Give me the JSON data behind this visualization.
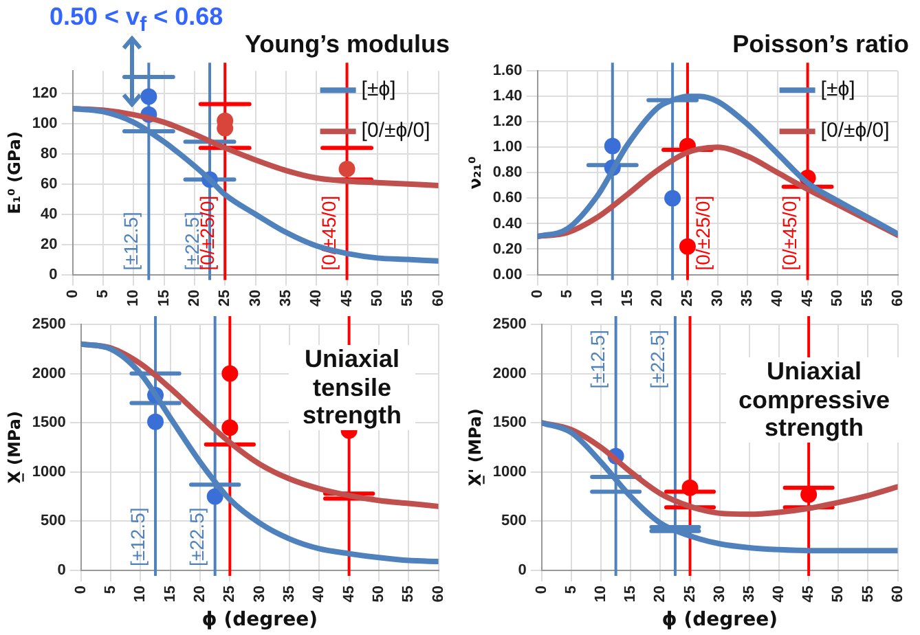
{
  "chart_data": [
    {
      "type": "line",
      "title": "Young’s modulus",
      "ylabel": "E₁⁰ (GPa)",
      "xlim": [
        0,
        60
      ],
      "xticks": [
        0,
        5,
        10,
        15,
        20,
        25,
        30,
        35,
        40,
        45,
        50,
        55,
        60
      ],
      "ylim": [
        0,
        135
      ],
      "yticks": [
        0,
        20,
        40,
        60,
        80,
        100,
        120
      ],
      "grid": true,
      "legend": "top right",
      "annotations": [
        "0.50 < v$_{f}$ < 0.68"
      ],
      "ref_lines": [
        {
          "axis": "x",
          "value": 12.5,
          "label": "[±12.5]",
          "color": "#4f81bd"
        },
        {
          "axis": "x",
          "value": 22.5,
          "label": "[±22.5]",
          "color": "#4f81bd"
        },
        {
          "axis": "x",
          "value": 25,
          "label": "[0/±25/0]",
          "color": "#ff0000"
        },
        {
          "axis": "x",
          "value": 45,
          "label": "[0/±45/0]",
          "color": "#ff0000"
        }
      ],
      "series": [
        {
          "name": "[±ϕ]",
          "type": "line",
          "marker": "none",
          "color": "#4f81bd",
          "x": [
            0,
            5,
            10,
            15,
            20,
            22.5,
            25,
            30,
            35,
            40,
            45,
            50,
            55,
            60
          ],
          "values": [
            110,
            108,
            101,
            88,
            72,
            63,
            53,
            40,
            28,
            19,
            14,
            11,
            10,
            9
          ]
        },
        {
          "name": "[0/±ϕ/0]",
          "type": "line",
          "marker": "none",
          "color": "#c0504d",
          "x": [
            0,
            5,
            10,
            15,
            20,
            25,
            30,
            35,
            40,
            45,
            50,
            55,
            60
          ],
          "values": [
            110,
            109,
            106,
            101,
            93,
            84,
            76,
            69,
            64,
            62,
            61,
            60,
            59
          ]
        },
        {
          "type": "scatter",
          "marker": "circle",
          "color": "#3a6fd8",
          "x": [
            12.5,
            12.5,
            22.5
          ],
          "values": [
            118,
            106,
            63
          ]
        },
        {
          "type": "scatter",
          "marker": "circle",
          "color": "#d9453a",
          "x": [
            25,
            25,
            45
          ],
          "values": [
            102,
            97,
            70
          ]
        },
        {
          "type": "line",
          "marker": "none",
          "color": "#4f81bd",
          "x": [
            8.5,
            16.5
          ],
          "values": [
            131,
            131
          ]
        },
        {
          "type": "line",
          "marker": "none",
          "color": "#4f81bd",
          "x": [
            8.5,
            16.5
          ],
          "values": [
            95,
            95
          ]
        },
        {
          "type": "line",
          "marker": "none",
          "color": "#4f81bd",
          "x": [
            18.5,
            26.5
          ],
          "values": [
            88,
            88
          ]
        },
        {
          "type": "line",
          "marker": "none",
          "color": "#4f81bd",
          "x": [
            18.5,
            26.5
          ],
          "values": [
            63,
            63
          ]
        },
        {
          "type": "line",
          "marker": "none",
          "color": "#ff0000",
          "x": [
            21,
            29
          ],
          "values": [
            113,
            113
          ]
        },
        {
          "type": "line",
          "marker": "none",
          "color": "#ff0000",
          "x": [
            21,
            29
          ],
          "values": [
            84,
            84
          ]
        },
        {
          "type": "line",
          "marker": "none",
          "color": "#ff0000",
          "x": [
            41,
            49
          ],
          "values": [
            84,
            84
          ]
        },
        {
          "type": "line",
          "marker": "none",
          "color": "#ff0000",
          "x": [
            41,
            49
          ],
          "values": [
            63,
            63
          ]
        }
      ]
    },
    {
      "type": "line",
      "title": "Poisson’s ratio",
      "ylabel": "ν₂₁⁰",
      "xlim": [
        0,
        60
      ],
      "xticks": [
        0,
        5,
        10,
        15,
        20,
        25,
        30,
        35,
        40,
        45,
        50,
        55,
        60
      ],
      "ylim": [
        0,
        1.6
      ],
      "yticks": [
        {
          "value": 0,
          "label": "0.00"
        },
        {
          "value": 0.2,
          "label": "0.20"
        },
        {
          "value": 0.4,
          "label": "0.40"
        },
        {
          "value": 0.6,
          "label": "0.60"
        },
        {
          "value": 0.8,
          "label": "0.80"
        },
        {
          "value": 1,
          "label": "1.00"
        },
        {
          "value": 1.2,
          "label": "1.20"
        },
        {
          "value": 1.4,
          "label": "1.40"
        },
        {
          "value": 1.6,
          "label": "1.60"
        }
      ],
      "grid": true,
      "legend": "top right",
      "ref_lines": [
        {
          "axis": "x",
          "value": 12.5,
          "color": "#4f81bd"
        },
        {
          "axis": "x",
          "value": 22.5,
          "color": "#4f81bd"
        },
        {
          "axis": "x",
          "value": 25,
          "label": "[0/±25/0]",
          "color": "#ff0000"
        },
        {
          "axis": "x",
          "value": 45,
          "label": "[0/±45/0]",
          "color": "#ff0000"
        }
      ],
      "series": [
        {
          "name": "[±ϕ]",
          "type": "line",
          "marker": "none",
          "color": "#4f81bd",
          "x": [
            0,
            5,
            10,
            15,
            20,
            22.5,
            25,
            27,
            30,
            35,
            40,
            45,
            50,
            55,
            60
          ],
          "values": [
            0.3,
            0.36,
            0.62,
            1.02,
            1.31,
            1.37,
            1.4,
            1.4,
            1.36,
            1.18,
            0.95,
            0.72,
            0.58,
            0.45,
            0.32
          ]
        },
        {
          "name": "[0/±ϕ/0]",
          "type": "line",
          "marker": "none",
          "color": "#c0504d",
          "x": [
            0,
            5,
            10,
            15,
            20,
            25,
            30,
            35,
            40,
            45,
            50,
            55,
            60
          ],
          "values": [
            0.3,
            0.33,
            0.45,
            0.63,
            0.82,
            0.96,
            1,
            0.93,
            0.8,
            0.67,
            0.55,
            0.43,
            0.31
          ]
        },
        {
          "type": "scatter",
          "marker": "circle",
          "color": "#3a6fd8",
          "x": [
            12.5,
            12.5,
            22.5
          ],
          "values": [
            1.01,
            0.84,
            0.6
          ]
        },
        {
          "type": "scatter",
          "marker": "circle",
          "color": "#ff0000",
          "x": [
            25,
            25,
            45
          ],
          "values": [
            1.01,
            0.22,
            0.76
          ]
        },
        {
          "type": "line",
          "marker": "none",
          "color": "#4f81bd",
          "x": [
            8.5,
            16.5
          ],
          "values": [
            0.86,
            0.86
          ]
        },
        {
          "type": "line",
          "marker": "none",
          "color": "#4f81bd",
          "x": [
            18.5,
            26.5
          ],
          "values": [
            1.37,
            1.37
          ]
        },
        {
          "type": "line",
          "marker": "none",
          "color": "#ff0000",
          "x": [
            21,
            29
          ],
          "values": [
            0.98,
            0.98
          ]
        },
        {
          "type": "line",
          "marker": "none",
          "color": "#ff0000",
          "x": [
            41,
            49
          ],
          "values": [
            0.69,
            0.69
          ]
        }
      ]
    },
    {
      "type": "line",
      "xlabel": "ϕ (degree)",
      "ylabel": "X̲ (MPa)",
      "xlim": [
        0,
        60
      ],
      "xticks": [
        0,
        5,
        10,
        15,
        20,
        25,
        30,
        35,
        40,
        45,
        50,
        55,
        60
      ],
      "ylim": [
        0,
        2500
      ],
      "yticks": [
        0,
        500,
        1000,
        1500,
        2000,
        2500
      ],
      "grid": true,
      "annotations": [
        "Uniaxial tensile strength"
      ],
      "ref_lines": [
        {
          "axis": "x",
          "value": 12.5,
          "label": "[±12.5]",
          "color": "#4f81bd"
        },
        {
          "axis": "x",
          "value": 22.5,
          "label": "[±22.5]",
          "color": "#4f81bd"
        },
        {
          "axis": "x",
          "value": 25,
          "color": "#ff0000"
        },
        {
          "axis": "x",
          "value": 45,
          "color": "#ff0000"
        }
      ],
      "series": [
        {
          "type": "line",
          "marker": "none",
          "color": "#4f81bd",
          "x": [
            0,
            5,
            10,
            15,
            20,
            22.5,
            25,
            30,
            35,
            40,
            45,
            50,
            55,
            60
          ],
          "values": [
            2300,
            2250,
            2000,
            1550,
            1100,
            900,
            720,
            480,
            320,
            220,
            170,
            130,
            100,
            90
          ]
        },
        {
          "type": "line",
          "marker": "none",
          "color": "#c0504d",
          "x": [
            0,
            5,
            10,
            15,
            20,
            25,
            30,
            35,
            40,
            45,
            50,
            55,
            60
          ],
          "values": [
            2300,
            2260,
            2100,
            1850,
            1570,
            1300,
            1080,
            930,
            830,
            760,
            710,
            680,
            650
          ]
        },
        {
          "type": "scatter",
          "marker": "circle",
          "color": "#3a6fd8",
          "x": [
            12.5,
            12.5,
            22.5
          ],
          "values": [
            1780,
            1510,
            750
          ]
        },
        {
          "type": "scatter",
          "marker": "circle",
          "color": "#ff0000",
          "x": [
            25,
            25,
            45
          ],
          "values": [
            2000,
            1450,
            1420
          ]
        },
        {
          "type": "line",
          "marker": "none",
          "color": "#4f81bd",
          "x": [
            8.5,
            16.5
          ],
          "values": [
            2000,
            2000
          ]
        },
        {
          "type": "line",
          "marker": "none",
          "color": "#4f81bd",
          "x": [
            8.5,
            16.5
          ],
          "values": [
            1700,
            1700
          ]
        },
        {
          "type": "line",
          "marker": "none",
          "color": "#4f81bd",
          "x": [
            18.5,
            26.5
          ],
          "values": [
            870,
            870
          ]
        },
        {
          "type": "line",
          "marker": "none",
          "color": "#ff0000",
          "x": [
            21,
            29
          ],
          "values": [
            1280,
            1280
          ]
        },
        {
          "type": "line",
          "marker": "none",
          "color": "#ff0000",
          "x": [
            41,
            49
          ],
          "values": [
            780,
            780
          ]
        },
        {
          "type": "line",
          "marker": "none",
          "color": "#ff0000",
          "x": [
            41,
            49
          ],
          "values": [
            730,
            730
          ]
        }
      ]
    },
    {
      "type": "line",
      "xlabel": "ϕ (degree)",
      "ylabel": "X̲' (MPa)",
      "xlim": [
        0,
        60
      ],
      "xticks": [
        0,
        5,
        10,
        15,
        20,
        25,
        30,
        35,
        40,
        45,
        50,
        55,
        60
      ],
      "ylim": [
        0,
        2500
      ],
      "yticks": [
        0,
        500,
        1000,
        1500,
        2000,
        2500
      ],
      "grid": true,
      "annotations": [
        "Uniaxial compressive strength"
      ],
      "ref_lines": [
        {
          "axis": "x",
          "value": 12.5,
          "label": "[±12.5]",
          "color": "#4f81bd"
        },
        {
          "axis": "x",
          "value": 22.5,
          "label": "[±22.5]",
          "color": "#4f81bd"
        },
        {
          "axis": "x",
          "value": 25,
          "color": "#ff0000"
        },
        {
          "axis": "x",
          "value": 45,
          "color": "#ff0000"
        }
      ],
      "series": [
        {
          "type": "line",
          "marker": "none",
          "color": "#4f81bd",
          "x": [
            0,
            5,
            10,
            15,
            20,
            25,
            30,
            35,
            40,
            45,
            50,
            55,
            60
          ],
          "values": [
            1500,
            1400,
            1100,
            750,
            480,
            350,
            270,
            230,
            210,
            200,
            200,
            200,
            200
          ]
        },
        {
          "type": "line",
          "marker": "none",
          "color": "#c0504d",
          "x": [
            0,
            5,
            10,
            15,
            20,
            25,
            30,
            35,
            40,
            45,
            50,
            55,
            60
          ],
          "values": [
            1500,
            1430,
            1250,
            1000,
            780,
            650,
            580,
            570,
            590,
            630,
            690,
            760,
            850
          ]
        },
        {
          "type": "scatter",
          "marker": "circle",
          "color": "#3a6fd8",
          "x": [
            12.5
          ],
          "values": [
            1160
          ]
        },
        {
          "type": "scatter",
          "marker": "circle",
          "color": "#ff0000",
          "x": [
            25,
            45
          ],
          "values": [
            840,
            770
          ]
        },
        {
          "type": "line",
          "marker": "none",
          "color": "#4f81bd",
          "x": [
            8.5,
            16.5
          ],
          "values": [
            950,
            950
          ]
        },
        {
          "type": "line",
          "marker": "none",
          "color": "#4f81bd",
          "x": [
            8.5,
            16.5
          ],
          "values": [
            800,
            800
          ]
        },
        {
          "type": "line",
          "marker": "none",
          "color": "#4f81bd",
          "x": [
            18.5,
            26.5
          ],
          "values": [
            440,
            440
          ]
        },
        {
          "type": "line",
          "marker": "none",
          "color": "#4f81bd",
          "x": [
            18.5,
            26.5
          ],
          "values": [
            400,
            400
          ]
        },
        {
          "type": "line",
          "marker": "none",
          "color": "#ff0000",
          "x": [
            21,
            29
          ],
          "values": [
            800,
            800
          ]
        },
        {
          "type": "line",
          "marker": "none",
          "color": "#ff0000",
          "x": [
            21,
            29
          ],
          "values": [
            640,
            640
          ]
        },
        {
          "type": "line",
          "marker": "none",
          "color": "#ff0000",
          "x": [
            41,
            49
          ],
          "values": [
            840,
            840
          ]
        },
        {
          "type": "line",
          "marker": "none",
          "color": "#ff0000",
          "x": [
            41,
            49
          ],
          "values": [
            640,
            640
          ]
        }
      ]
    }
  ]
}
